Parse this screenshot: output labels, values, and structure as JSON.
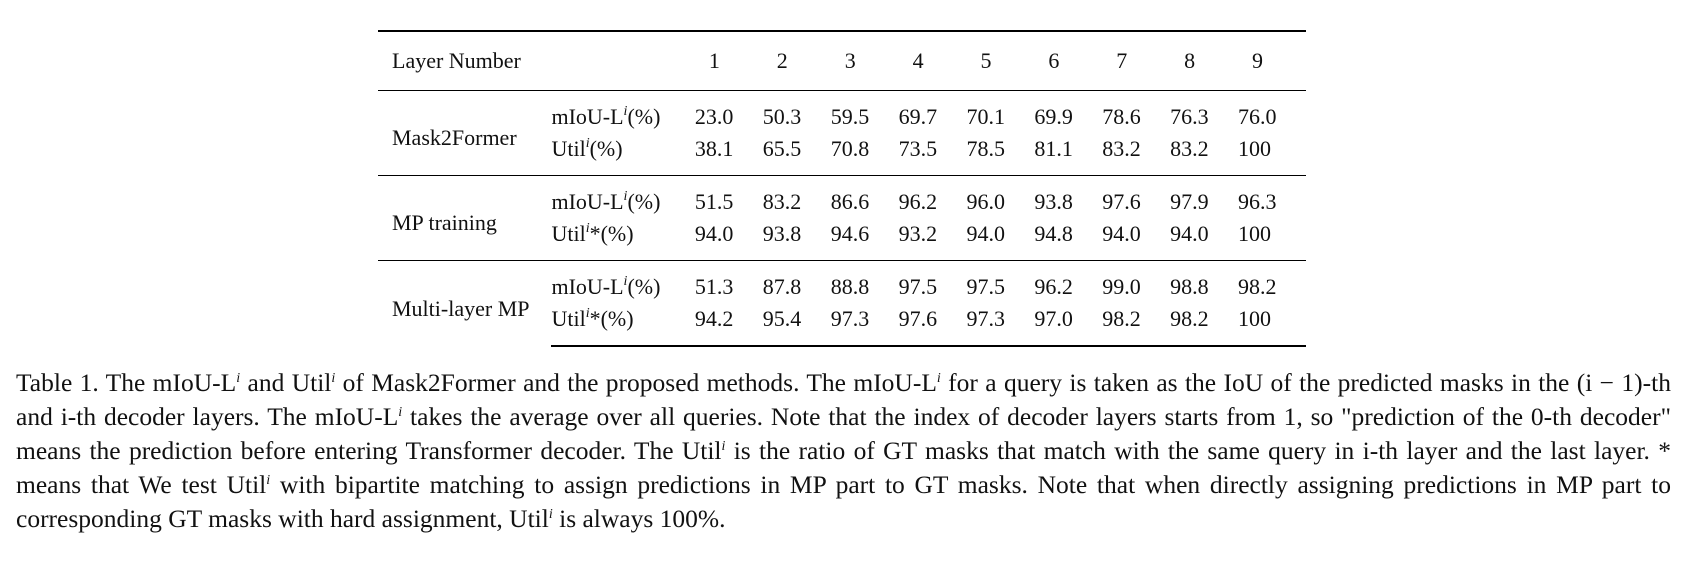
{
  "table": {
    "header_label": "Layer Number",
    "layers": [
      "1",
      "2",
      "3",
      "4",
      "5",
      "6",
      "7",
      "8",
      "9"
    ],
    "groups": [
      {
        "method": "Mask2Former",
        "rows": [
          {
            "metric_base": "mIoU-L",
            "metric_sup": "i",
            "metric_suffix": "(%)",
            "values": [
              "23.0",
              "50.3",
              "59.5",
              "69.7",
              "70.1",
              "69.9",
              "78.6",
              "76.3",
              "76.0"
            ]
          },
          {
            "metric_base": "Util",
            "metric_sup": "i",
            "metric_suffix": "(%)",
            "values": [
              "38.1",
              "65.5",
              "70.8",
              "73.5",
              "78.5",
              "81.1",
              "83.2",
              "83.2",
              "100"
            ]
          }
        ]
      },
      {
        "method": "MP training",
        "rows": [
          {
            "metric_base": "mIoU-L",
            "metric_sup": "i",
            "metric_suffix": "(%)",
            "values": [
              "51.5",
              "83.2",
              "86.6",
              "96.2",
              "96.0",
              "93.8",
              "97.6",
              "97.9",
              "96.3"
            ]
          },
          {
            "metric_base": "Util",
            "metric_sup": "i",
            "metric_suffix": "*(%)",
            "values": [
              "94.0",
              "93.8",
              "94.6",
              "93.2",
              "94.0",
              "94.8",
              "94.0",
              "94.0",
              "100"
            ]
          }
        ]
      },
      {
        "method": "Multi-layer MP",
        "rows": [
          {
            "metric_base": "mIoU-L",
            "metric_sup": "i",
            "metric_suffix": "(%)",
            "values": [
              "51.3",
              "87.8",
              "88.8",
              "97.5",
              "97.5",
              "96.2",
              "99.0",
              "98.8",
              "98.2"
            ]
          },
          {
            "metric_base": "Util",
            "metric_sup": "i",
            "metric_suffix": "*(%)",
            "values": [
              "94.2",
              "95.4",
              "97.3",
              "97.6",
              "97.3",
              "97.0",
              "98.2",
              "98.2",
              "100"
            ]
          }
        ]
      }
    ]
  },
  "caption": {
    "seg1": "Table 1. The mIoU-L",
    "sup1": "i",
    "seg2": " and Util",
    "sup2": "i",
    "seg3": " of Mask2Former and the proposed methods. The mIoU-L",
    "sup3": "i",
    "seg4": " for a query is taken as the IoU of the predicted masks in the (i − 1)-th and i-th decoder layers. The mIoU-L",
    "sup4": "i",
    "seg5": " takes the average over all queries. Note that the index of decoder layers starts from 1, so \"prediction of the 0-th decoder\" means the prediction before entering Transformer decoder. The Util",
    "sup5": "i",
    "seg6": " is the ratio of GT masks that match with the same query in i-th layer and the last layer. * means that We test Util",
    "sup6": "i",
    "seg7": " with bipartite matching to assign predictions in MP part to GT masks. Note that when directly assigning predictions in MP part to corresponding GT masks with hard assignment, Util",
    "sup7": "i",
    "seg8": " is always 100%."
  }
}
